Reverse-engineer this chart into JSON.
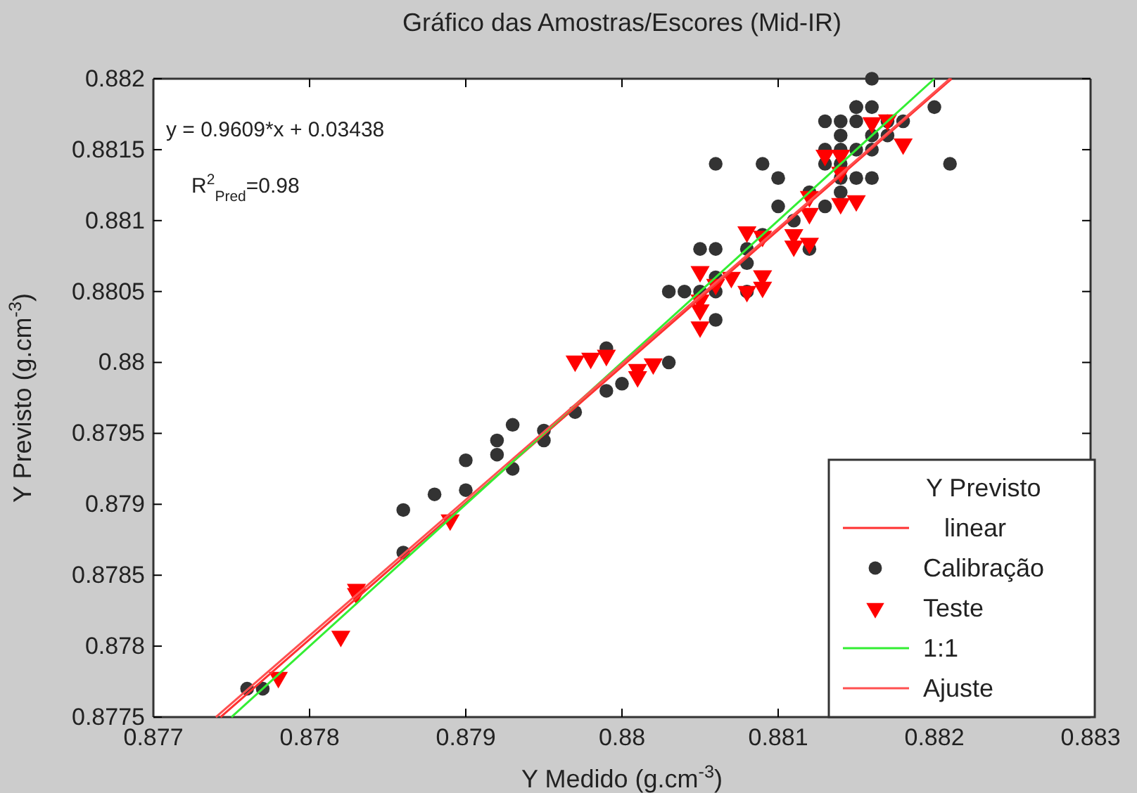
{
  "chart_data": {
    "type": "scatter",
    "title": "Gráfico das Amostras/Escores (Mid-IR)",
    "xlabel": "Y Medido (g.cm$^{-3}$)",
    "ylabel": "Y Previsto (g.cm$^{-3}$)",
    "legend_title": "Y Previsto",
    "legend": "bottom right",
    "grid": false,
    "xlim": [
      0.877,
      0.883
    ],
    "xticks": [
      0.877,
      0.878,
      0.879,
      0.88,
      0.881,
      0.882,
      0.883
    ],
    "ylim": [
      0.8775,
      0.882
    ],
    "yticks": [
      0.8775,
      0.878,
      0.8785,
      0.879,
      0.8795,
      0.88,
      0.8805,
      0.881,
      0.8815,
      0.882
    ],
    "annotations": [
      "y = 0.9609*x + 0.03438",
      "R$^{2}$$_{Pred}$=0.98"
    ],
    "series": [
      {
        "name": "linear",
        "type": "line",
        "color": "#ff3030",
        "marker": "none",
        "x": [
          0.87743,
          0.88211
        ],
        "values": [
          0.8775,
          0.882
        ]
      },
      {
        "name": "Calibração",
        "color": "#333333",
        "marker": "circle",
        "x": [
          0.8776,
          0.8777,
          0.8786,
          0.8786,
          0.8788,
          0.879,
          0.879,
          0.8792,
          0.8792,
          0.8793,
          0.8793,
          0.8795,
          0.8795,
          0.8797,
          0.8799,
          0.8799,
          0.88,
          0.8803,
          0.8803,
          0.8804,
          0.8805,
          0.8805,
          0.8806,
          0.8806,
          0.8806,
          0.8806,
          0.8806,
          0.8808,
          0.8808,
          0.8808,
          0.8809,
          0.8809,
          0.881,
          0.881,
          0.8811,
          0.8812,
          0.8812,
          0.8813,
          0.8813,
          0.8813,
          0.8813,
          0.8814,
          0.8814,
          0.8814,
          0.8814,
          0.8814,
          0.8814,
          0.8815,
          0.8815,
          0.8815,
          0.8815,
          0.8815,
          0.8816,
          0.8816,
          0.8816,
          0.8816,
          0.8816,
          0.8817,
          0.8817,
          0.8818,
          0.882,
          0.8821
        ],
        "values": [
          0.8777,
          0.8777,
          0.87896,
          0.87866,
          0.87907,
          0.87931,
          0.8791,
          0.87945,
          0.87935,
          0.87956,
          0.87925,
          0.87952,
          0.87945,
          0.87965,
          0.8801,
          0.8798,
          0.87985,
          0.8805,
          0.88,
          0.8805,
          0.8805,
          0.8808,
          0.8814,
          0.8808,
          0.8806,
          0.8805,
          0.8803,
          0.8808,
          0.8807,
          0.8805,
          0.8814,
          0.8809,
          0.8813,
          0.8811,
          0.881,
          0.8808,
          0.8812,
          0.8817,
          0.8815,
          0.8814,
          0.8811,
          0.8817,
          0.8816,
          0.8815,
          0.8814,
          0.8813,
          0.8812,
          0.8818,
          0.8818,
          0.8817,
          0.8815,
          0.8813,
          0.882,
          0.8818,
          0.8816,
          0.8815,
          0.8813,
          0.8817,
          0.8816,
          0.8817,
          0.8818,
          0.8814
        ]
      },
      {
        "name": "Teste",
        "color": "#ff0000",
        "marker": "triangle",
        "x": [
          0.8778,
          0.8782,
          0.8783,
          0.8783,
          0.8789,
          0.8797,
          0.8798,
          0.8799,
          0.8801,
          0.8801,
          0.8802,
          0.8805,
          0.8805,
          0.8805,
          0.8805,
          0.8806,
          0.8807,
          0.8808,
          0.8808,
          0.8809,
          0.8809,
          0.8809,
          0.8811,
          0.8811,
          0.8812,
          0.8812,
          0.8812,
          0.8813,
          0.8814,
          0.8814,
          0.8814,
          0.8815,
          0.8816,
          0.8817,
          0.8818
        ],
        "values": [
          0.87778,
          0.87807,
          0.8784,
          0.87837,
          0.87889,
          0.88001,
          0.88003,
          0.88005,
          0.87995,
          0.8799,
          0.87999,
          0.88064,
          0.88044,
          0.88037,
          0.88025,
          0.88055,
          0.8806,
          0.88092,
          0.8805,
          0.88089,
          0.88061,
          0.88053,
          0.8809,
          0.88082,
          0.88117,
          0.88105,
          0.88084,
          0.88146,
          0.88146,
          0.88134,
          0.88112,
          0.88114,
          0.88169,
          0.88171,
          0.88154
        ]
      },
      {
        "name": "1:1",
        "type": "line",
        "color": "#33ee33",
        "marker": "none",
        "x": [
          0.8775,
          0.882
        ],
        "values": [
          0.8775,
          0.882
        ]
      },
      {
        "name": "Ajuste",
        "type": "line",
        "color": "#ff5050",
        "marker": "none",
        "x": [
          0.8774,
          0.8821
        ],
        "values": [
          0.8775,
          0.882
        ]
      }
    ]
  }
}
